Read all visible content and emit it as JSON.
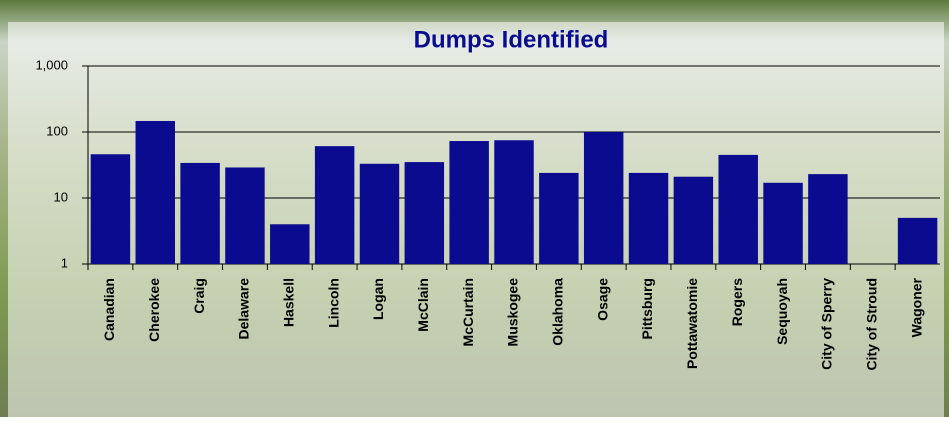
{
  "chart_data": {
    "type": "bar",
    "title": "Dumps Identified",
    "categories": [
      "Canadian",
      "Cherokee",
      "Craig",
      "Delaware",
      "Haskell",
      "Lincoln",
      "Logan",
      "McClain",
      "McCurtain",
      "Muskogee",
      "Oklahoma",
      "Osage",
      "Pittsburg",
      "Pottawatomie",
      "Rogers",
      "Sequoyah",
      "City of Sperry",
      "City of Stroud",
      "Wagoner"
    ],
    "values": [
      46,
      147,
      34,
      29,
      4,
      61,
      33,
      35,
      73,
      75,
      24,
      100,
      24,
      21,
      45,
      17,
      23,
      null,
      5
    ],
    "color": "#0b0b8f",
    "log_scale": true,
    "ylim": [
      1,
      1000
    ],
    "yticks": [
      1,
      10,
      100,
      {
        "value": 1000,
        "label": "1,000"
      }
    ],
    "grid": true
  }
}
